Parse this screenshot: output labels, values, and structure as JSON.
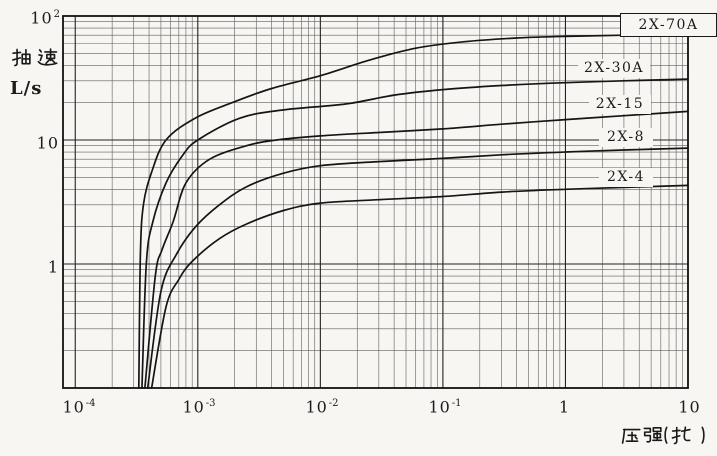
{
  "axes": {
    "y_title_cn": "抽速",
    "y_unit": "L/s",
    "x_title": "压强(托)"
  },
  "chart_data": {
    "type": "line",
    "title": "",
    "xlabel": "压强(托)",
    "ylabel": "抽速 L/s",
    "x_scale": "log",
    "y_scale": "log",
    "xlim": [
      0.0001,
      10
    ],
    "ylim": [
      0.1,
      100
    ],
    "grid": true,
    "legend_position": "inline-right",
    "x_tick_labels": [
      {
        "base": "10",
        "exp": "-4"
      },
      {
        "base": "10",
        "exp": "-3"
      },
      {
        "base": "10",
        "exp": "-2"
      },
      {
        "base": "10",
        "exp": "-1"
      },
      {
        "base": "1",
        "exp": ""
      },
      {
        "base": "10",
        "exp": ""
      }
    ],
    "y_tick_labels": [
      {
        "base": "10",
        "exp": "2"
      },
      {
        "base": "10",
        "exp": ""
      },
      {
        "base": "1",
        "exp": ""
      }
    ],
    "series": [
      {
        "name": "2X-70A",
        "points": [
          [
            0.00033,
            0.1
          ],
          [
            0.00034,
            1.2
          ],
          [
            0.00036,
            3
          ],
          [
            0.00042,
            5.5
          ],
          [
            0.00055,
            10
          ],
          [
            0.00095,
            15
          ],
          [
            0.0019,
            20
          ],
          [
            0.004,
            26
          ],
          [
            0.01,
            33
          ],
          [
            0.025,
            44
          ],
          [
            0.06,
            55
          ],
          [
            0.15,
            62
          ],
          [
            0.4,
            66.5
          ],
          [
            1,
            68.5
          ],
          [
            3,
            70
          ],
          [
            10,
            72
          ]
        ]
      },
      {
        "name": "2X-30A",
        "points": [
          [
            0.00035,
            0.1
          ],
          [
            0.00038,
            1
          ],
          [
            0.00043,
            2.2
          ],
          [
            0.00055,
            4.5
          ],
          [
            0.00075,
            7.5
          ],
          [
            0.001,
            10
          ],
          [
            0.0022,
            15
          ],
          [
            0.005,
            17.5
          ],
          [
            0.016,
            19.5
          ],
          [
            0.04,
            23
          ],
          [
            0.1,
            25.5
          ],
          [
            0.3,
            27.5
          ],
          [
            1,
            29
          ],
          [
            3,
            30
          ],
          [
            10,
            31
          ]
        ]
      },
      {
        "name": "2X-15",
        "points": [
          [
            0.00037,
            0.1
          ],
          [
            0.00045,
            0.8
          ],
          [
            0.00051,
            1.3
          ],
          [
            0.00063,
            2.2
          ],
          [
            0.0008,
            4.5
          ],
          [
            0.00125,
            7
          ],
          [
            0.0025,
            9
          ],
          [
            0.0044,
            10
          ],
          [
            0.01,
            10.8
          ],
          [
            0.03,
            11.5
          ],
          [
            0.1,
            12.3
          ],
          [
            0.3,
            13.4
          ],
          [
            1,
            14.6
          ],
          [
            3,
            15.7
          ],
          [
            10,
            17
          ]
        ]
      },
      {
        "name": "2X-8",
        "points": [
          [
            0.00039,
            0.1
          ],
          [
            0.0005,
            0.6
          ],
          [
            0.00067,
            1.2
          ],
          [
            0.00096,
            2
          ],
          [
            0.0015,
            3
          ],
          [
            0.0025,
            4.2
          ],
          [
            0.005,
            5.4
          ],
          [
            0.01,
            6.2
          ],
          [
            0.03,
            6.7
          ],
          [
            0.1,
            7.1
          ],
          [
            0.3,
            7.6
          ],
          [
            1,
            8
          ],
          [
            3,
            8.3
          ],
          [
            10,
            8.6
          ]
        ]
      },
      {
        "name": "2X-4",
        "points": [
          [
            0.00042,
            0.1
          ],
          [
            0.00055,
            0.45
          ],
          [
            0.0007,
            0.75
          ],
          [
            0.0009,
            1.05
          ],
          [
            0.0015,
            1.6
          ],
          [
            0.0025,
            2.1
          ],
          [
            0.005,
            2.7
          ],
          [
            0.01,
            3.1
          ],
          [
            0.03,
            3.3
          ],
          [
            0.1,
            3.5
          ],
          [
            0.3,
            3.8
          ],
          [
            1,
            4
          ],
          [
            3,
            4.15
          ],
          [
            10,
            4.3
          ]
        ]
      }
    ]
  }
}
